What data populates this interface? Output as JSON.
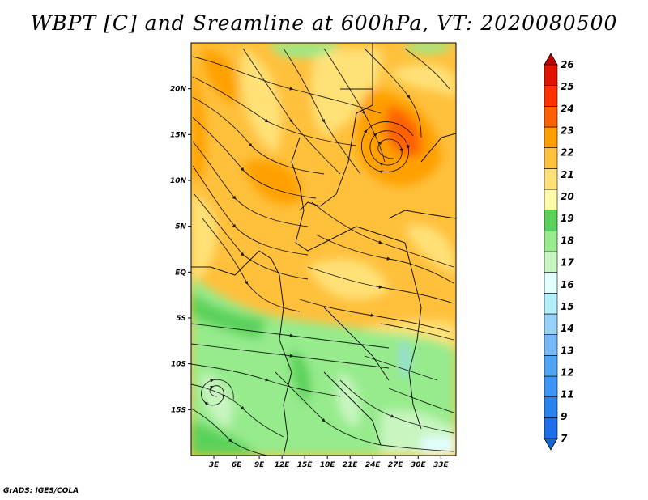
{
  "title": "WBPT [C] and Sreamline at 600hPa, VT: 2020080500",
  "credit": "GrADS: IGES/COLA",
  "map": {
    "lat_labels": [
      "20N",
      "15N",
      "10N",
      "5N",
      "EQ",
      "5S",
      "10S",
      "15S"
    ],
    "lat_values": [
      20,
      15,
      10,
      5,
      0,
      -5,
      -10,
      -15
    ],
    "lon_labels": [
      "3E",
      "6E",
      "9E",
      "12E",
      "15E",
      "18E",
      "21E",
      "24E",
      "27E",
      "30E",
      "33E"
    ],
    "lon_values": [
      3,
      6,
      9,
      12,
      15,
      18,
      21,
      24,
      27,
      30,
      33
    ],
    "lon_range": [
      0,
      35
    ],
    "lat_range": [
      -20,
      25
    ]
  },
  "colorbar": {
    "labels": [
      "7",
      "9",
      "11",
      "12",
      "13",
      "14",
      "15",
      "16",
      "17",
      "18",
      "19",
      "20",
      "21",
      "22",
      "23",
      "24",
      "25",
      "26"
    ],
    "colors": [
      "#1464d2",
      "#1e6eeb",
      "#2882f0",
      "#3c96f5",
      "#50a5f5",
      "#78b9fa",
      "#96d2fa",
      "#b4f0fa",
      "#e1ffff",
      "#c8f5c0",
      "#96eb8c",
      "#5ad25a",
      "#fffaaa",
      "#ffe178",
      "#ffc03c",
      "#ffa000",
      "#ff6000",
      "#ff3200",
      "#e11400",
      "#c00000"
    ]
  }
}
